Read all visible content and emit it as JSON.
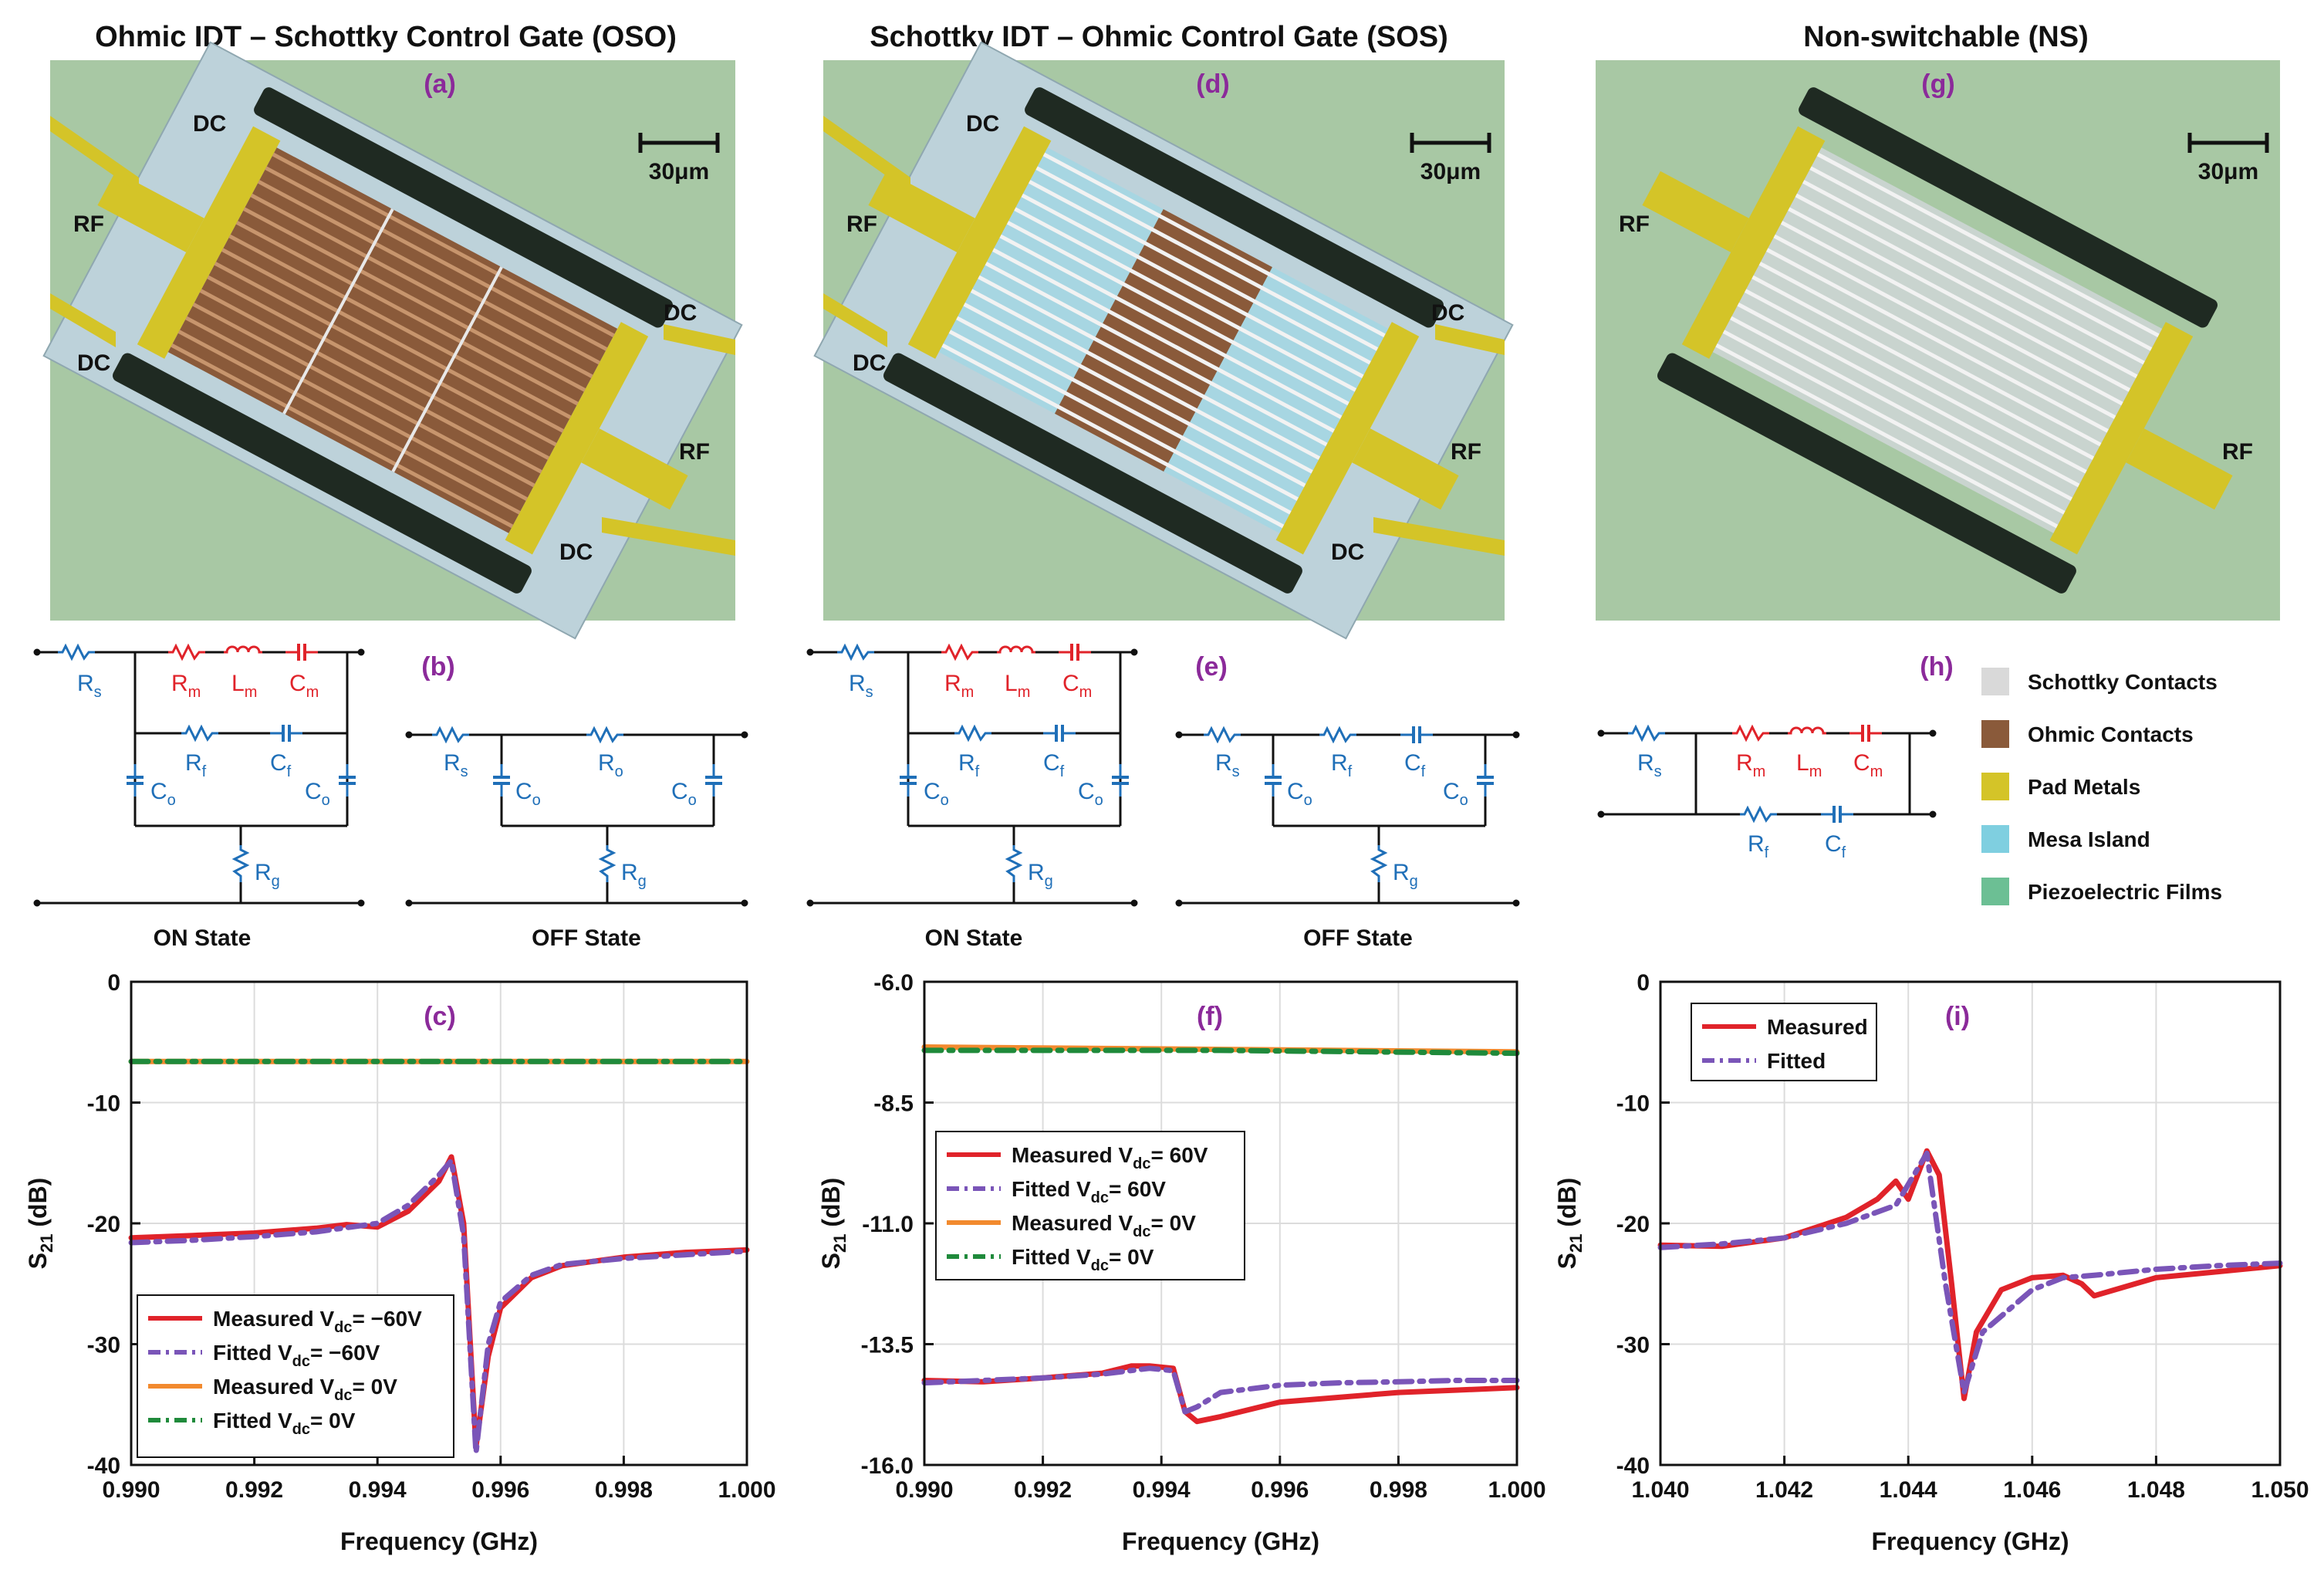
{
  "panel_titles": {
    "oso": "Ohmic IDT – Schottky Control Gate (OSO)",
    "sos": "Schottky IDT – Ohmic Control Gate (SOS)",
    "ns": "Non-switchable (NS)"
  },
  "panel_labels": {
    "a": "(a)",
    "b": "(b)",
    "c": "(c)",
    "d": "(d)",
    "e": "(e)",
    "f": "(f)",
    "g": "(g)",
    "h": "(h)",
    "i": "(i)"
  },
  "device_labels": {
    "dc": "DC",
    "rf": "RF",
    "scale": "30μm"
  },
  "circuit": {
    "on_state": "ON State",
    "off_state": "OFF State",
    "Rs": "R",
    "Rs_sub": "s",
    "Rm": "R",
    "Rm_sub": "m",
    "Lm": "L",
    "Lm_sub": "m",
    "Cm": "C",
    "Cm_sub": "m",
    "Rf": "R",
    "Rf_sub": "f",
    "Cf": "C",
    "Cf_sub": "f",
    "Co": "C",
    "Co_sub": "o",
    "Ro": "R",
    "Ro_sub": "o",
    "Rg": "R",
    "Rg_sub": "g"
  },
  "legend_materials": [
    {
      "label": "Schottky Contacts",
      "color": "#d9d9d9"
    },
    {
      "label": "Ohmic Contacts",
      "color": "#8a5a3a"
    },
    {
      "label": "Pad Metals",
      "color": "#d4c428"
    },
    {
      "label": "Mesa Island",
      "color": "#7fcfe0"
    },
    {
      "label": "Piezoelectric Films",
      "color": "#6cbf94"
    }
  ],
  "colors": {
    "red": "#e0232a",
    "purple": "#7a55b8",
    "orange": "#f28a2e",
    "green": "#1f8a3b",
    "blue": "#1f6fb8",
    "panel_purple": "#8b2a9a"
  },
  "chart_data": [
    {
      "id": "c",
      "type": "line",
      "xlabel": "Frequency (GHz)",
      "ylabel": "S",
      "ylabel_sub": "21",
      "ylabel_unit": " (dB)",
      "xlim": [
        0.99,
        1.0
      ],
      "ylim": [
        -40,
        0
      ],
      "xticks": [
        "0.990",
        "0.992",
        "0.994",
        "0.996",
        "0.998",
        "1.000"
      ],
      "yticks": [
        "0",
        "-10",
        "-20",
        "-30",
        "-40"
      ],
      "series": [
        {
          "name": "Measured V",
          "sub": "dc",
          "suffix": "= −60V",
          "color": "#e0232a",
          "dash": "",
          "x": [
            0.99,
            0.991,
            0.992,
            0.993,
            0.9935,
            0.994,
            0.9945,
            0.995,
            0.9952,
            0.9954,
            0.9956,
            0.9958,
            0.996,
            0.9965,
            0.997,
            0.998,
            0.999,
            1.0
          ],
          "y": [
            -21.2,
            -21.0,
            -20.8,
            -20.4,
            -20.1,
            -20.3,
            -19.0,
            -16.5,
            -14.5,
            -20,
            -38.5,
            -31,
            -27,
            -24.5,
            -23.5,
            -22.8,
            -22.4,
            -22.2
          ]
        },
        {
          "name": "Fitted V",
          "sub": "dc",
          "suffix": "= −60V",
          "color": "#7a55b8",
          "dash": "22,10,5,10",
          "x": [
            0.99,
            0.991,
            0.992,
            0.993,
            0.994,
            0.9945,
            0.995,
            0.9952,
            0.9954,
            0.9956,
            0.9958,
            0.996,
            0.9965,
            0.997,
            0.998,
            0.999,
            1.0
          ],
          "y": [
            -21.6,
            -21.4,
            -21.1,
            -20.7,
            -20.0,
            -18.5,
            -16.0,
            -14.8,
            -21,
            -39,
            -30,
            -26.5,
            -24.3,
            -23.4,
            -22.9,
            -22.6,
            -22.3
          ]
        },
        {
          "name": "Measured V",
          "sub": "dc",
          "suffix": "= 0V",
          "color": "#f28a2e",
          "dash": "",
          "x": [
            0.99,
            1.0
          ],
          "y": [
            -6.6,
            -6.6
          ]
        },
        {
          "name": "Fitted V",
          "sub": "dc",
          "suffix": "= 0V",
          "color": "#1f8a3b",
          "dash": "22,10,5,10",
          "x": [
            0.99,
            1.0
          ],
          "y": [
            -6.6,
            -6.6
          ]
        }
      ]
    },
    {
      "id": "f",
      "type": "line",
      "xlabel": "Frequency (GHz)",
      "ylabel": "S",
      "ylabel_sub": "21",
      "ylabel_unit": " (dB)",
      "xlim": [
        0.99,
        1.0
      ],
      "ylim": [
        -16.0,
        -6.0
      ],
      "xticks": [
        "0.990",
        "0.992",
        "0.994",
        "0.996",
        "0.998",
        "1.000"
      ],
      "yticks": [
        "-6.0",
        "-8.5",
        "-11.0",
        "-13.5",
        "-16.0"
      ],
      "series": [
        {
          "name": "Measured V",
          "sub": "dc",
          "suffix": "= 60V",
          "color": "#e0232a",
          "dash": "",
          "x": [
            0.99,
            0.991,
            0.992,
            0.993,
            0.9935,
            0.9938,
            0.9942,
            0.9944,
            0.9946,
            0.995,
            0.996,
            0.997,
            0.998,
            0.999,
            1.0
          ],
          "y": [
            -14.25,
            -14.28,
            -14.2,
            -14.1,
            -13.95,
            -13.95,
            -14.0,
            -14.9,
            -15.1,
            -15.0,
            -14.7,
            -14.6,
            -14.5,
            -14.45,
            -14.4
          ]
        },
        {
          "name": "Fitted V",
          "sub": "dc",
          "suffix": "= 60V",
          "color": "#7a55b8",
          "dash": "22,10,5,10",
          "x": [
            0.99,
            0.991,
            0.992,
            0.993,
            0.9938,
            0.9942,
            0.9944,
            0.9946,
            0.995,
            0.996,
            0.997,
            0.998,
            0.999,
            1.0
          ],
          "y": [
            -14.3,
            -14.25,
            -14.2,
            -14.12,
            -14.0,
            -14.05,
            -14.9,
            -14.8,
            -14.5,
            -14.35,
            -14.3,
            -14.28,
            -14.25,
            -14.25
          ]
        },
        {
          "name": "Measured V",
          "sub": "dc",
          "suffix": "= 0V",
          "color": "#f28a2e",
          "dash": "",
          "x": [
            0.99,
            0.995,
            1.0
          ],
          "y": [
            -7.35,
            -7.4,
            -7.45
          ]
        },
        {
          "name": "Fitted V",
          "sub": "dc",
          "suffix": "= 0V",
          "color": "#1f8a3b",
          "dash": "22,10,5,10",
          "x": [
            0.99,
            0.995,
            1.0
          ],
          "y": [
            -7.42,
            -7.42,
            -7.48
          ]
        }
      ]
    },
    {
      "id": "i",
      "type": "line",
      "xlabel": "Frequency (GHz)",
      "ylabel": "S",
      "ylabel_sub": "21",
      "ylabel_unit": " (dB)",
      "xlim": [
        1.04,
        1.05
      ],
      "ylim": [
        -40,
        0
      ],
      "xticks": [
        "1.040",
        "1.042",
        "1.044",
        "1.046",
        "1.048",
        "1.050"
      ],
      "yticks": [
        "0",
        "-10",
        "-20",
        "-30",
        "-40"
      ],
      "series": [
        {
          "name": "Measured",
          "sub": "",
          "suffix": "",
          "color": "#e0232a",
          "dash": "",
          "x": [
            1.04,
            1.041,
            1.042,
            1.043,
            1.0435,
            1.0438,
            1.044,
            1.0443,
            1.0445,
            1.0447,
            1.0449,
            1.0451,
            1.0455,
            1.046,
            1.0465,
            1.0468,
            1.047,
            1.048,
            1.049,
            1.05
          ],
          "y": [
            -21.8,
            -21.9,
            -21.2,
            -19.5,
            -18,
            -16.5,
            -18,
            -14,
            -16,
            -25,
            -34.5,
            -29,
            -25.5,
            -24.5,
            -24.3,
            -25,
            -26,
            -24.5,
            -24,
            -23.5
          ]
        },
        {
          "name": "Fitted",
          "sub": "",
          "suffix": "",
          "color": "#7a55b8",
          "dash": "22,10,5,10",
          "x": [
            1.04,
            1.041,
            1.042,
            1.043,
            1.0438,
            1.0443,
            1.0446,
            1.0449,
            1.0452,
            1.046,
            1.0465,
            1.047,
            1.048,
            1.049,
            1.05
          ],
          "y": [
            -22,
            -21.7,
            -21.2,
            -20,
            -18.5,
            -14.2,
            -25,
            -34,
            -29,
            -25.5,
            -24.5,
            -24.3,
            -23.8,
            -23.5,
            -23.3
          ]
        }
      ]
    }
  ]
}
